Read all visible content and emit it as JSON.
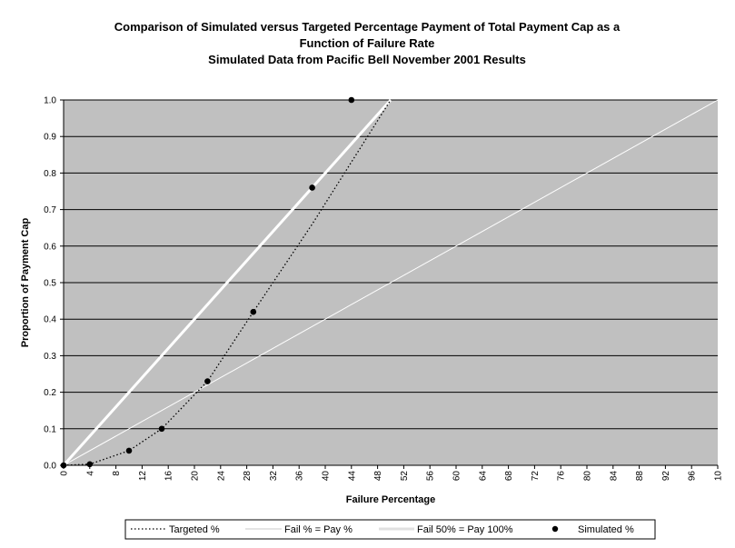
{
  "chart_data": {
    "type": "scatter",
    "title_lines": [
      "Comparison of Simulated versus Targeted Percentage Payment of Total Payment Cap as a",
      "Function of Failure Rate",
      "Simulated Data from Pacific Bell November 2001 Results"
    ],
    "xlabel": "Failure Percentage",
    "ylabel": "Proportion of Payment Cap",
    "xlim": [
      0,
      100
    ],
    "ylim": [
      0,
      1
    ],
    "x_ticks": [
      "0",
      "4",
      "8",
      "12",
      "16",
      "20",
      "24",
      "28",
      "32",
      "36",
      "40",
      "44",
      "48",
      "52",
      "56",
      "60",
      "64",
      "68",
      "72",
      "76",
      "80",
      "84",
      "88",
      "92",
      "96",
      "10"
    ],
    "y_ticks": [
      "0.0",
      "0.1",
      "0.2",
      "0.3",
      "0.4",
      "0.5",
      "0.6",
      "0.7",
      "0.8",
      "0.9",
      "1.0"
    ],
    "grid": "horizontal",
    "legend_position": "bottom",
    "colors": {
      "plot_background": "#c0c0c0",
      "targeted": "#000000",
      "fail_pay": "#ffffff",
      "fail50": "#ffffff",
      "simulated": "#000000"
    },
    "series": [
      {
        "name": "Targeted %",
        "style": "dotted",
        "x": [
          0,
          4,
          10,
          15,
          22,
          29,
          38,
          50
        ],
        "y": [
          0,
          0.003,
          0.04,
          0.1,
          0.23,
          0.42,
          0.66,
          1.0
        ]
      },
      {
        "name": "Fail % = Pay %",
        "style": "thin-line",
        "x": [
          0,
          100
        ],
        "y": [
          0,
          1
        ]
      },
      {
        "name": "Fail 50% = Pay 100%",
        "style": "thick-line",
        "x": [
          0,
          50
        ],
        "y": [
          0,
          1
        ]
      },
      {
        "name": "Simulated %",
        "style": "markers",
        "x": [
          0,
          4,
          10,
          15,
          22,
          29,
          38,
          44
        ],
        "y": [
          0,
          0.003,
          0.04,
          0.1,
          0.23,
          0.42,
          0.76,
          1.0
        ]
      }
    ]
  }
}
